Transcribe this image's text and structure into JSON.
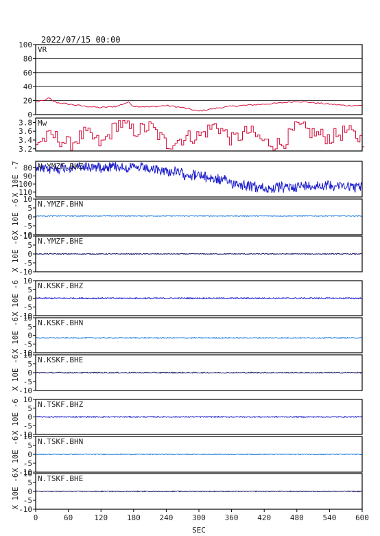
{
  "header": {
    "datetime": "2022/07/15 00:00"
  },
  "colors": {
    "frame": "#000000",
    "vr_line": "#d4103c",
    "mw_line": "#d4103c",
    "bhz": "#1a1acc",
    "bhn": "#1e7ddc",
    "bhe": "#1a1a66"
  },
  "chart_data": {
    "type": "line",
    "x_axis": {
      "label": "SEC",
      "range": [
        0,
        600
      ],
      "ticks": [
        "0",
        "60",
        "120",
        "180",
        "240",
        "300",
        "360",
        "420",
        "480",
        "540",
        "600"
      ]
    },
    "panels": [
      {
        "id": "vr",
        "label": "VR",
        "ylim": [
          0,
          100
        ],
        "yticks": [
          "100",
          "80",
          "60",
          "40",
          "20",
          "0"
        ],
        "grid": true,
        "series": {
          "x": [
            0,
            15,
            25,
            30,
            40,
            60,
            90,
            120,
            150,
            170,
            180,
            210,
            240,
            270,
            300,
            330,
            360,
            400,
            440,
            480,
            510,
            540,
            570,
            600
          ],
          "y": [
            18,
            20,
            24,
            20,
            17,
            15,
            12,
            10,
            12,
            18,
            12,
            11,
            13,
            10,
            5,
            9,
            12,
            14,
            16,
            19,
            17,
            15,
            13,
            13
          ]
        }
      },
      {
        "id": "mw",
        "label": "Mw",
        "ylim": [
          3.15,
          3.9
        ],
        "yticks": [
          "3.8",
          "3.6",
          "3.4",
          "3.2"
        ],
        "grid": false,
        "series": {
          "x": [
            0,
            30,
            60,
            90,
            120,
            150,
            180,
            210,
            240,
            270,
            300,
            330,
            360,
            390,
            420,
            450,
            480,
            510,
            540,
            570,
            600
          ],
          "y": [
            3.35,
            3.5,
            3.3,
            3.55,
            3.3,
            3.8,
            3.6,
            3.7,
            3.3,
            3.45,
            3.5,
            3.75,
            3.4,
            3.6,
            3.35,
            3.3,
            3.7,
            3.55,
            3.45,
            3.6,
            3.4
          ]
        }
      },
      {
        "id": "ymzf-bhz",
        "label": "N.YMZF.BHZ",
        "ylabel": "X 10E -7",
        "yticks": [
          "80",
          "90",
          "100",
          "110"
        ],
        "ylim": [
          72,
          116
        ],
        "color_key": "bhz",
        "trend": {
          "x": [
            0,
            90,
            150,
            240,
            300,
            360,
            420,
            480,
            540,
            600
          ],
          "y": [
            82,
            79,
            78,
            84,
            90,
            98,
            106,
            103,
            101,
            104
          ]
        },
        "noise_amp": 4
      },
      {
        "id": "ymzf-bhn",
        "label": "N.YMZF.BHN",
        "ylabel": "X 10E -6",
        "yticks": [
          "10",
          "5",
          "0",
          "-5",
          "-10"
        ],
        "ylim": [
          -10,
          10
        ],
        "color_key": "bhn",
        "offset": 0.5,
        "noise_amp": 0.25
      },
      {
        "id": "ymzf-bhe",
        "label": "N.YMZF.BHE",
        "ylabel": "X 10E -6",
        "yticks": [
          "10",
          "5",
          "0",
          "-5",
          "-10"
        ],
        "ylim": [
          -10,
          10
        ],
        "color_key": "bhe",
        "offset": 0,
        "noise_amp": 0.25
      },
      {
        "id": "kskf-bhz",
        "label": "N.KSKF.BHZ",
        "ylabel": "X 10E -6",
        "yticks": [
          "10",
          "5",
          "0",
          "-5",
          "-10"
        ],
        "ylim": [
          -10,
          10
        ],
        "color_key": "bhz",
        "offset": 0,
        "noise_amp": 0.35
      },
      {
        "id": "kskf-bhn",
        "label": "N.KSKF.BHN",
        "ylabel": "X 10E -6",
        "yticks": [
          "10",
          "5",
          "0",
          "-5",
          "-10"
        ],
        "ylim": [
          -10,
          10
        ],
        "color_key": "bhn",
        "offset": -1.5,
        "noise_amp": 0.3
      },
      {
        "id": "kskf-bhe",
        "label": "N.KSKF.BHE",
        "ylabel": "X 10E -6",
        "yticks": [
          "10",
          "5",
          "0",
          "-5",
          "-10"
        ],
        "ylim": [
          -10,
          10
        ],
        "color_key": "bhe",
        "offset": 0,
        "noise_amp": 0.3
      },
      {
        "id": "tskf-bhz",
        "label": "N.TSKF.BHZ",
        "ylabel": "X 10E -6",
        "yticks": [
          "10",
          "5",
          "0",
          "-5",
          "-10"
        ],
        "ylim": [
          -10,
          10
        ],
        "color_key": "bhz",
        "offset": 0,
        "noise_amp": 0.3
      },
      {
        "id": "tskf-bhn",
        "label": "N.TSKF.BHN",
        "ylabel": "X 10E -6",
        "yticks": [
          "10",
          "5",
          "0",
          "-5",
          "-10"
        ],
        "ylim": [
          -10,
          10
        ],
        "color_key": "bhn",
        "offset": 0,
        "noise_amp": 0.25
      },
      {
        "id": "tskf-bhe",
        "label": "N.TSKF.BHE",
        "ylabel": "X 10E -6",
        "yticks": [
          "10",
          "5",
          "0",
          "-5",
          "-10"
        ],
        "ylim": [
          -10,
          10
        ],
        "color_key": "bhe",
        "offset": 0,
        "noise_amp": 0.25
      }
    ]
  }
}
